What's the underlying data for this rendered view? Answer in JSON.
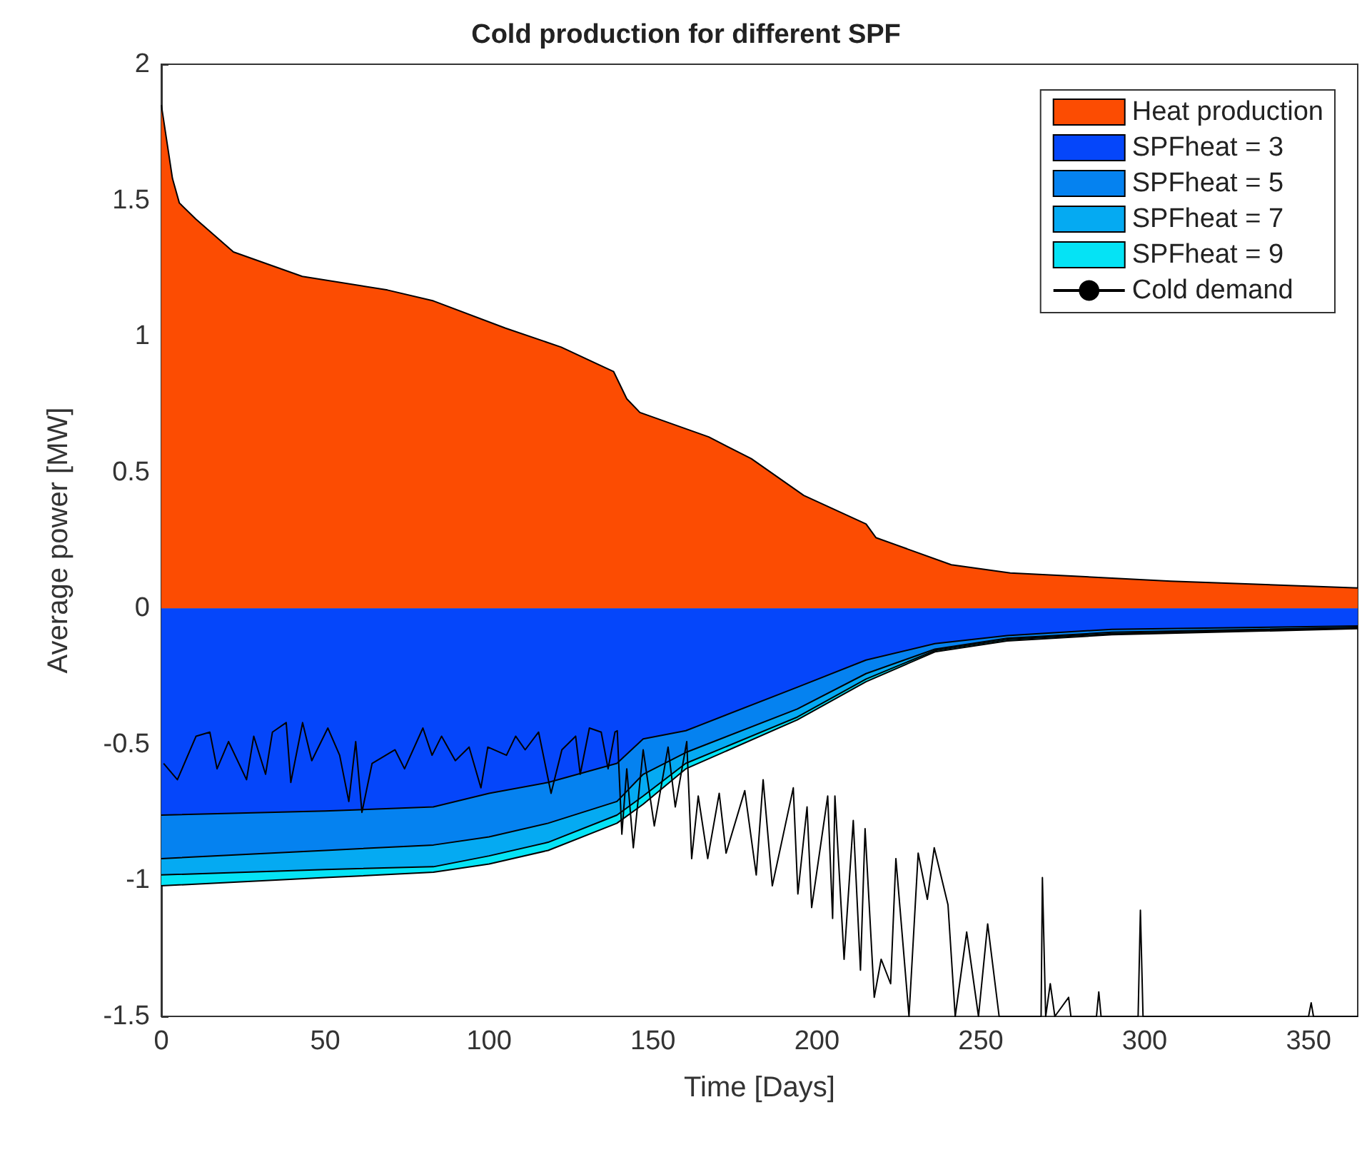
{
  "chart_data": {
    "type": "area",
    "title": "Cold production for different SPF",
    "xlabel": "Time [Days]",
    "ylabel": "Average power [MW]",
    "xlim": [
      0,
      365
    ],
    "xticks": [
      0,
      50,
      100,
      150,
      200,
      250,
      300,
      350
    ],
    "ylim": [
      -1.5,
      2
    ],
    "yticks": [
      -1.5,
      -1,
      -0.5,
      0,
      0.5,
      1,
      1.5,
      2
    ],
    "grid": false,
    "legend": "top right",
    "marker": "none",
    "series": [
      {
        "name": "Heat production",
        "color": "#fc4c02",
        "x": [
          0,
          3.4,
          5.5,
          10.6,
          22,
          43,
          69,
          83,
          105,
          122,
          138,
          142,
          146,
          167,
          180,
          196,
          215,
          218,
          241,
          259,
          308,
          365
        ],
        "values": [
          1.85,
          1.58,
          1.49,
          1.43,
          1.31,
          1.22,
          1.17,
          1.13,
          1.03,
          0.96,
          0.87,
          0.77,
          0.72,
          0.63,
          0.55,
          0.415,
          0.31,
          0.26,
          0.16,
          0.13,
          0.1,
          0.075
        ]
      },
      {
        "name": "SPFheat = 3",
        "color": "#0546fa",
        "x": [
          0,
          50,
          83,
          100,
          118,
          139,
          147,
          160,
          194,
          215,
          236,
          258,
          290,
          365
        ],
        "values": [
          -0.76,
          -0.745,
          -0.73,
          -0.68,
          -0.64,
          -0.57,
          -0.48,
          -0.45,
          -0.29,
          -0.19,
          -0.13,
          -0.1,
          -0.077,
          -0.065
        ]
      },
      {
        "name": "SPFheat = 5",
        "color": "#0582f0",
        "x": [
          0,
          50,
          83,
          100,
          118,
          139,
          147,
          160,
          194,
          215,
          236,
          258,
          290,
          365
        ],
        "values": [
          -0.92,
          -0.89,
          -0.87,
          -0.84,
          -0.79,
          -0.71,
          -0.61,
          -0.53,
          -0.37,
          -0.24,
          -0.15,
          -0.11,
          -0.088,
          -0.07
        ]
      },
      {
        "name": "SPFheat = 7",
        "color": "#05aaf2",
        "x": [
          0,
          50,
          83,
          100,
          118,
          139,
          147,
          160,
          194,
          215,
          236,
          258,
          290,
          365
        ],
        "values": [
          -0.98,
          -0.96,
          -0.95,
          -0.91,
          -0.86,
          -0.76,
          -0.69,
          -0.57,
          -0.4,
          -0.26,
          -0.155,
          -0.115,
          -0.093,
          -0.073
        ]
      },
      {
        "name": "SPFheat = 9",
        "color": "#05e3f5",
        "x": [
          0,
          50,
          83,
          100,
          118,
          139,
          147,
          160,
          194,
          215,
          236,
          258,
          290,
          365
        ],
        "values": [
          -1.02,
          -0.99,
          -0.97,
          -0.94,
          -0.89,
          -0.79,
          -0.72,
          -0.59,
          -0.41,
          -0.27,
          -0.16,
          -0.12,
          -0.097,
          -0.075
        ]
      },
      {
        "name": "Cold demand",
        "type": "line",
        "line_style": "solid",
        "color": "#000000",
        "x": [
          0.7,
          4.9,
          10.6,
          14.8,
          17,
          20.5,
          26,
          28.2,
          31.8,
          33.9,
          38.1,
          39.5,
          43.1,
          45.9,
          50.8,
          54.4,
          57.2,
          59.3,
          61.2,
          64.3,
          71.3,
          74.2,
          79.8,
          82.6,
          85.5,
          89.7,
          93.9,
          97.5,
          99.6,
          105.3,
          108.1,
          111,
          115.1,
          118.9,
          122.2,
          126.4,
          127.8,
          130.6,
          134.2,
          136.3,
          138.4,
          139.1,
          140.5,
          142,
          144,
          147,
          150.4,
          154.6,
          156.8,
          160.3,
          161.8,
          163.8,
          166.7,
          170.2,
          172.3,
          178,
          181.5,
          183.6,
          186.4,
          192.8,
          194.2,
          197,
          198.4,
          203.3,
          204.8,
          205.5,
          208.3,
          211.1,
          213.3,
          214.7,
          217.5,
          219.6,
          222.5,
          224.1,
          228.1,
          230.9,
          233.7,
          235.8,
          240,
          242.2,
          245.7,
          249.3,
          252.1,
          255.6,
          260.6,
          268.4,
          268.8,
          269.8,
          271.2,
          272.6,
          276.8,
          277.5,
          285.3,
          286,
          286.7,
          298,
          298.7,
          299.5,
          350,
          350.8,
          351.5,
          365
        ],
        "values": [
          -0.57,
          -0.63,
          -0.47,
          -0.455,
          -0.59,
          -0.49,
          -0.63,
          -0.47,
          -0.61,
          -0.455,
          -0.42,
          -0.64,
          -0.42,
          -0.56,
          -0.44,
          -0.54,
          -0.71,
          -0.49,
          -0.75,
          -0.57,
          -0.52,
          -0.59,
          -0.44,
          -0.54,
          -0.47,
          -0.56,
          -0.51,
          -0.66,
          -0.51,
          -0.54,
          -0.47,
          -0.52,
          -0.455,
          -0.68,
          -0.52,
          -0.47,
          -0.61,
          -0.44,
          -0.455,
          -0.59,
          -0.455,
          -0.45,
          -0.83,
          -0.59,
          -0.88,
          -0.52,
          -0.8,
          -0.51,
          -0.73,
          -0.49,
          -0.92,
          -0.69,
          -0.92,
          -0.68,
          -0.9,
          -0.67,
          -0.98,
          -0.63,
          -1.02,
          -0.66,
          -1.05,
          -0.73,
          -1.1,
          -0.69,
          -1.14,
          -0.69,
          -1.29,
          -0.78,
          -1.33,
          -0.81,
          -1.43,
          -1.29,
          -1.38,
          -0.92,
          -1.5,
          -0.9,
          -1.07,
          -0.88,
          -1.09,
          -1.5,
          -1.19,
          -1.5,
          -1.16,
          -1.5,
          -1.5,
          -1.5,
          -0.99,
          -1.5,
          -1.38,
          -1.5,
          -1.43,
          -1.5,
          -1.5,
          -1.41,
          -1.5,
          -1.5,
          -1.11,
          -1.5,
          -1.5,
          -1.45,
          -1.5,
          -1.5
        ]
      }
    ]
  }
}
